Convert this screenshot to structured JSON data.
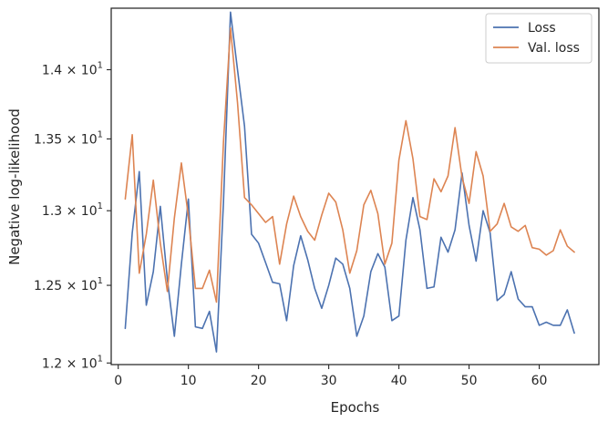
{
  "chart_data": {
    "type": "line",
    "xlabel": "Epochs",
    "ylabel": "Negative log-likelihood",
    "xlim": [
      -1,
      68.5
    ],
    "ylim": [
      11.99,
      14.46
    ],
    "yscale": "log",
    "grid": false,
    "legend_position": "top-right",
    "x_ticks": [
      {
        "value": 0,
        "label": "0"
      },
      {
        "value": 10,
        "label": "10"
      },
      {
        "value": 20,
        "label": "20"
      },
      {
        "value": 30,
        "label": "30"
      },
      {
        "value": 40,
        "label": "40"
      },
      {
        "value": 50,
        "label": "50"
      },
      {
        "value": 60,
        "label": "60"
      }
    ],
    "y_ticks": [
      {
        "value": 12.0,
        "label": "1.2 × 10"
      },
      {
        "value": 12.5,
        "label": "1.25 × 10"
      },
      {
        "value": 13.0,
        "label": "1.3 × 10"
      },
      {
        "value": 13.5,
        "label": "1.35 × 10"
      },
      {
        "value": 14.0,
        "label": "1.4 × 10"
      }
    ],
    "y_tick_exponent": "1",
    "x": [
      1,
      2,
      3,
      4,
      5,
      6,
      7,
      8,
      9,
      10,
      11,
      12,
      13,
      14,
      15,
      16,
      17,
      18,
      19,
      20,
      21,
      22,
      23,
      24,
      25,
      26,
      27,
      28,
      29,
      30,
      31,
      32,
      33,
      34,
      35,
      36,
      37,
      38,
      39,
      40,
      41,
      42,
      43,
      44,
      45,
      46,
      47,
      48,
      49,
      50,
      51,
      52,
      53,
      54,
      55,
      56,
      57,
      58,
      59,
      60,
      61,
      62,
      63,
      64,
      65
    ],
    "series": [
      {
        "name": "Loss",
        "color": "#4c72b0",
        "values": [
          12.22,
          12.85,
          13.27,
          12.37,
          12.59,
          13.03,
          12.54,
          12.17,
          12.64,
          13.08,
          12.23,
          12.22,
          12.33,
          12.07,
          13.06,
          14.43,
          14.0,
          13.59,
          12.84,
          12.78,
          12.65,
          12.52,
          12.51,
          12.27,
          12.63,
          12.83,
          12.67,
          12.48,
          12.35,
          12.5,
          12.68,
          12.64,
          12.48,
          12.17,
          12.3,
          12.59,
          12.71,
          12.62,
          12.27,
          12.3,
          12.8,
          13.09,
          12.87,
          12.48,
          12.49,
          12.82,
          12.72,
          12.87,
          13.26,
          12.9,
          12.66,
          13.0,
          12.85,
          12.4,
          12.44,
          12.59,
          12.41,
          12.36,
          12.36,
          12.24,
          12.26,
          12.24,
          12.24,
          12.34,
          12.19
        ]
      },
      {
        "name": "Val. loss",
        "color": "#dd8452",
        "values": [
          13.08,
          13.53,
          12.58,
          12.84,
          13.21,
          12.78,
          12.46,
          12.95,
          13.33,
          12.96,
          12.48,
          12.48,
          12.6,
          12.39,
          13.48,
          14.31,
          13.76,
          13.09,
          13.04,
          12.98,
          12.92,
          12.96,
          12.64,
          12.91,
          13.1,
          12.96,
          12.86,
          12.8,
          12.97,
          13.12,
          13.06,
          12.87,
          12.58,
          12.73,
          13.04,
          13.14,
          12.98,
          12.64,
          12.78,
          13.35,
          13.63,
          13.36,
          12.96,
          12.94,
          13.22,
          13.13,
          13.24,
          13.58,
          13.23,
          13.05,
          13.41,
          13.24,
          12.86,
          12.91,
          13.05,
          12.89,
          12.86,
          12.9,
          12.75,
          12.74,
          12.7,
          12.73,
          12.87,
          12.76,
          12.72
        ]
      }
    ]
  }
}
